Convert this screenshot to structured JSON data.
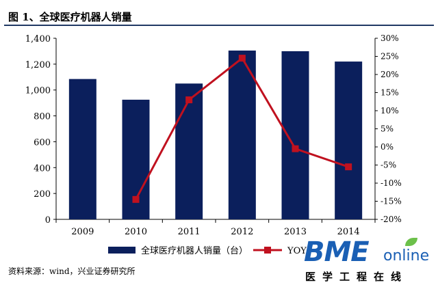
{
  "figure_title": "图 1、全球医疗机器人销量",
  "source": "资料来源：wind，兴业证券研究所",
  "watermark": {
    "brand": "BME",
    "suffix": "online",
    "subtitle": "医学工程在线"
  },
  "colors": {
    "bar": "#0b1f5c",
    "line": "#c0111f",
    "title_rule": "#1f3864"
  },
  "chart_data": {
    "type": "bar",
    "categories": [
      "2009",
      "2010",
      "2011",
      "2012",
      "2013",
      "2014"
    ],
    "series": [
      {
        "name": "全球医疗机器人销量（台）",
        "type": "bar",
        "axis": "left",
        "values": [
          1085,
          925,
          1050,
          1305,
          1300,
          1220
        ]
      },
      {
        "name": "YOY",
        "type": "line",
        "axis": "right",
        "values": [
          null,
          -14.5,
          13,
          24.5,
          -0.5,
          -5.5
        ]
      }
    ],
    "y_left": {
      "min": 0,
      "max": 1400,
      "ticks": [
        "0",
        "200",
        "400",
        "600",
        "800",
        "1,000",
        "1,200",
        "1,400"
      ]
    },
    "y_right": {
      "min": -20,
      "max": 30,
      "ticks": [
        "-20%",
        "-15%",
        "-10%",
        "-5%",
        "0%",
        "5%",
        "10%",
        "15%",
        "20%",
        "25%",
        "30%"
      ]
    },
    "legend": {
      "position": "bottom",
      "bar_label": "全球医疗机器人销量（台）",
      "line_label": "YOY"
    },
    "grid": false
  }
}
